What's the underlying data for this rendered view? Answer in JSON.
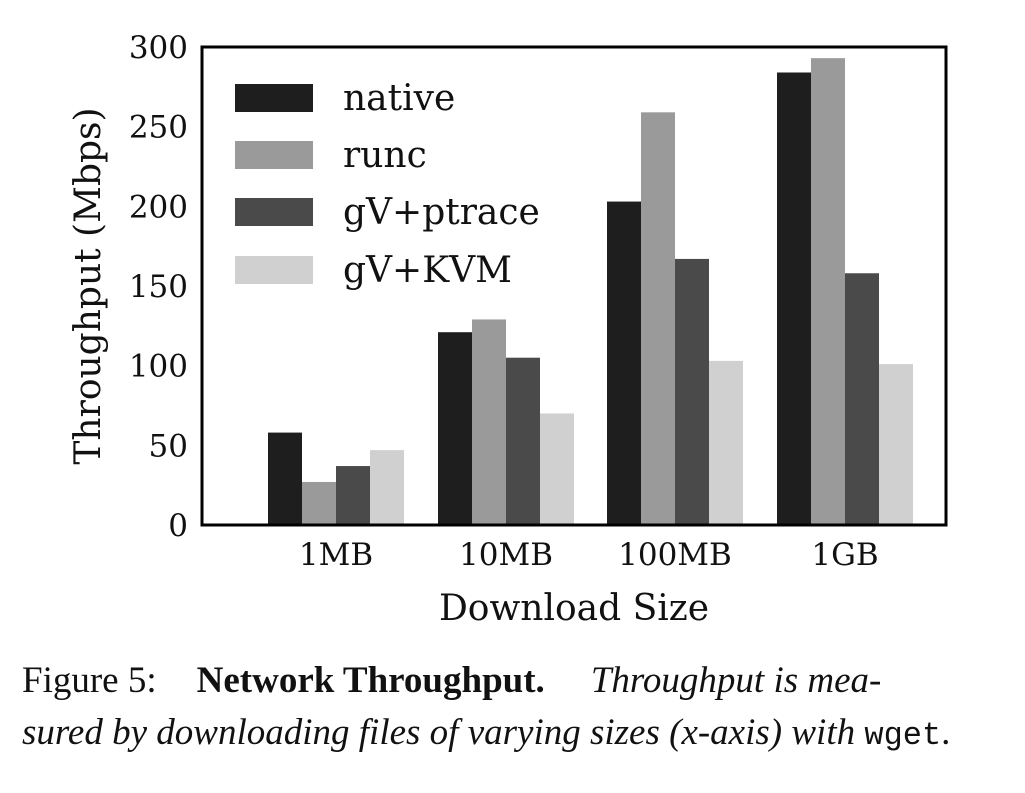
{
  "chart_data": {
    "type": "bar",
    "title": "",
    "xlabel": "Download Size",
    "ylabel": "Throughput (Mbps)",
    "ylim": [
      0,
      300
    ],
    "yticks": [
      "0",
      "50",
      "100",
      "150",
      "200",
      "250",
      "300"
    ],
    "categories": [
      "1MB",
      "10MB",
      "100MB",
      "1GB"
    ],
    "legend_position": "top-left",
    "grid": false,
    "series": [
      {
        "name": "native",
        "color": "#1e1e1e",
        "values": [
          58,
          121,
          203,
          284
        ]
      },
      {
        "name": "runc",
        "color": "#9a9a9a",
        "values": [
          27,
          129,
          259,
          293
        ]
      },
      {
        "name": "gV+ptrace",
        "color": "#4a4a4a",
        "values": [
          37,
          105,
          167,
          158
        ]
      },
      {
        "name": "gV+KVM",
        "color": "#d0d0d0",
        "values": [
          47,
          70,
          103,
          101
        ]
      }
    ]
  },
  "caption": {
    "label": "Figure 5:",
    "title": "Network Throughput.",
    "text_line1": "Throughput is mea-",
    "text_line2": "sured by downloading files of varying sizes (x-axis) with",
    "code": "wget",
    "end": "."
  }
}
